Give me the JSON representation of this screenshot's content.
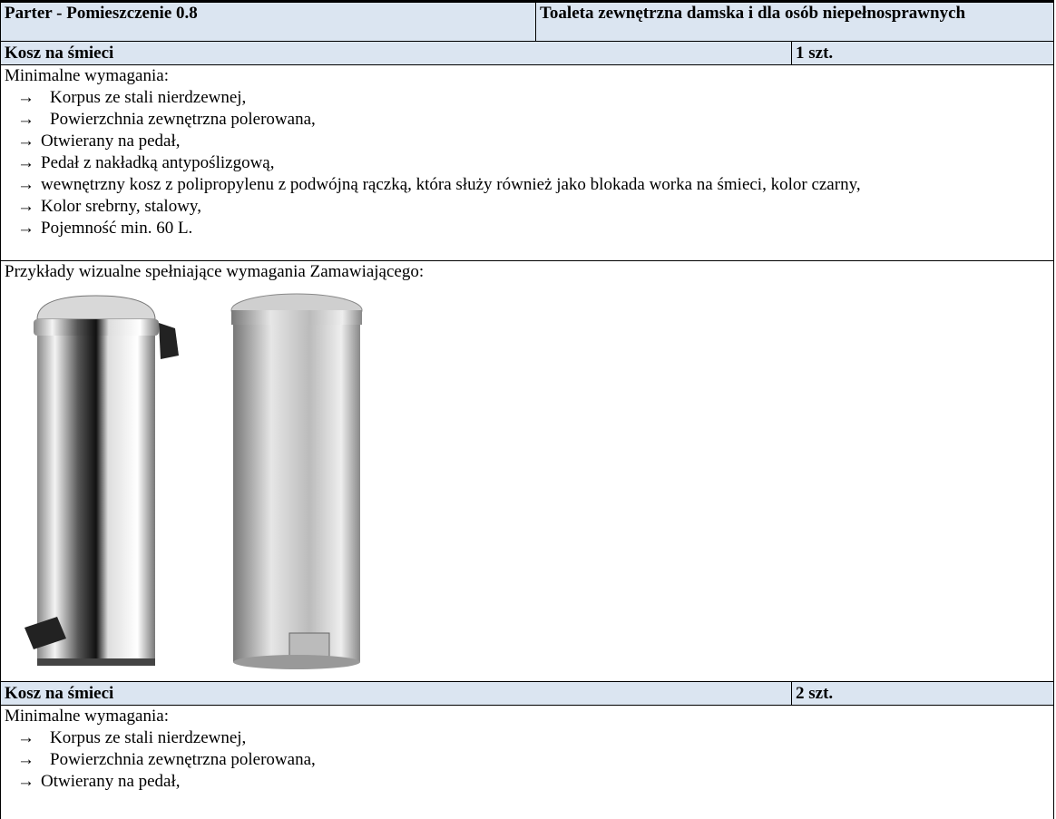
{
  "header": {
    "location": "Parter - Pomieszczenie 0.8",
    "room": "Toaleta zewnętrzna damska i dla osób niepełnosprawnych"
  },
  "items": [
    {
      "name": "Kosz na śmieci",
      "quantity": "1 szt.",
      "requirements_title": "Minimalne wymagania:",
      "requirements": [
        "Korpus ze stali nierdzewnej,",
        "Powierzchnia zewnętrzna polerowana,",
        "Otwierany na pedał,",
        "Pedał z nakładką antypoślizgową,",
        "wewnętrzny kosz z polipropylenu z podwójną rączką, która służy również jako blokada worka na śmieci, kolor czarny,",
        "Kolor srebrny, stalowy,",
        "Pojemność min. 60 L."
      ],
      "examples_title": "Przykłady wizualne spełniające wymagania Zamawiającego:"
    },
    {
      "name": "Kosz na śmieci",
      "quantity": "2 szt.",
      "requirements_title": "Minimalne wymagania:",
      "requirements": [
        "Korpus ze stali nierdzewnej,",
        "Powierzchnia zewnętrzna polerowana,",
        "Otwierany na pedał,"
      ]
    }
  ]
}
